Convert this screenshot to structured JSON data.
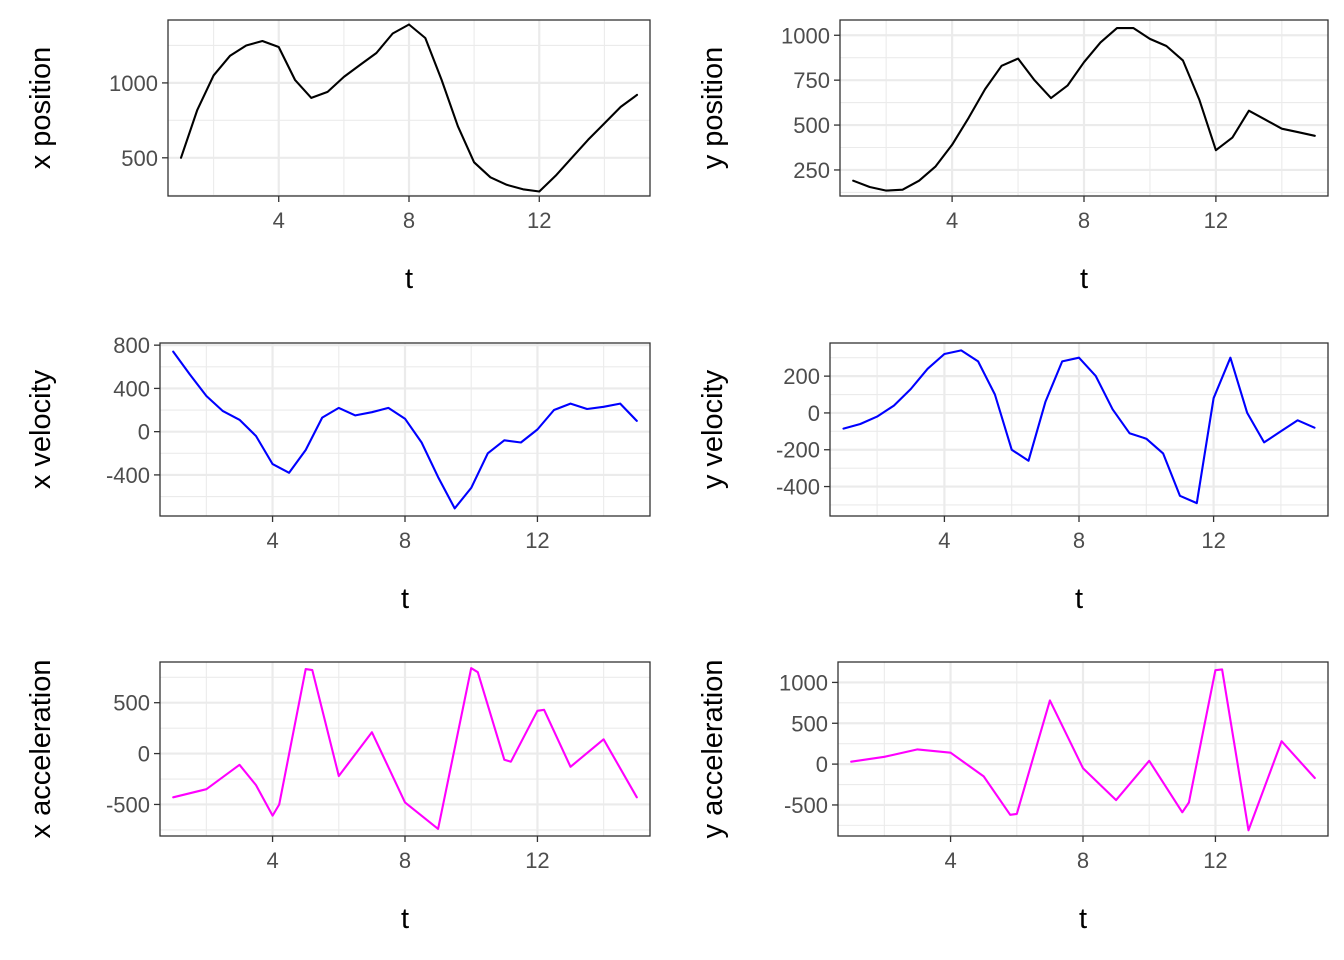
{
  "chart_data": [
    {
      "type": "line",
      "xlabel": "t",
      "ylabel": "x position",
      "color": "#000000",
      "xlim": [
        0.6,
        15.4
      ],
      "ylim": [
        245,
        1420
      ],
      "xticks": [
        4,
        8,
        12
      ],
      "xtick_labels": [
        "4",
        "8",
        "12"
      ],
      "yticks": [
        500,
        1000
      ],
      "ytick_labels": [
        "500",
        "1000"
      ],
      "x": [
        1,
        1.5,
        2,
        2.5,
        3,
        3.5,
        4,
        4.5,
        5,
        5.5,
        6,
        6.5,
        7,
        7.5,
        8,
        8.5,
        9,
        9.5,
        10,
        10.5,
        11,
        11.5,
        12,
        12.5,
        13,
        13.5,
        14,
        14.5,
        15
      ],
      "y": [
        500,
        820,
        1050,
        1180,
        1250,
        1280,
        1240,
        1020,
        900,
        940,
        1040,
        1120,
        1200,
        1330,
        1390,
        1300,
        1020,
        710,
        470,
        370,
        320,
        290,
        275,
        380,
        500,
        620,
        730,
        840,
        920
      ]
    },
    {
      "type": "line",
      "xlabel": "t",
      "ylabel": "y position",
      "color": "#000000",
      "xlim": [
        0.6,
        15.4
      ],
      "ylim": [
        105,
        1085
      ],
      "xticks": [
        4,
        8,
        12
      ],
      "xtick_labels": [
        "4",
        "8",
        "12"
      ],
      "yticks": [
        250,
        500,
        750,
        1000
      ],
      "ytick_labels": [
        "250",
        "500",
        "750",
        "1000"
      ],
      "x": [
        1,
        1.5,
        2,
        2.5,
        3,
        3.5,
        4,
        4.5,
        5,
        5.5,
        6,
        6.5,
        7,
        7.5,
        8,
        8.5,
        9,
        9.5,
        10,
        10.5,
        11,
        11.5,
        12,
        12.5,
        13,
        13.5,
        14,
        14.5,
        15
      ],
      "y": [
        190,
        155,
        135,
        140,
        190,
        270,
        390,
        540,
        700,
        830,
        870,
        750,
        650,
        720,
        850,
        960,
        1040,
        1040,
        980,
        940,
        860,
        640,
        360,
        430,
        580,
        530,
        480,
        460,
        440
      ]
    },
    {
      "type": "line",
      "xlabel": "t",
      "ylabel": "x velocity",
      "color": "#0000ff",
      "xlim": [
        0.6,
        15.4
      ],
      "ylim": [
        -780,
        820
      ],
      "xticks": [
        4,
        8,
        12
      ],
      "xtick_labels": [
        "4",
        "8",
        "12"
      ],
      "yticks": [
        -400,
        0,
        400,
        800
      ],
      "ytick_labels": [
        "-400",
        "0",
        "400",
        "800"
      ],
      "x": [
        1,
        1.5,
        2,
        2.5,
        3,
        3.5,
        4,
        4.5,
        5,
        5.5,
        6,
        6.5,
        7,
        7.5,
        8,
        8.5,
        9,
        9.5,
        10,
        10.5,
        11,
        11.5,
        12,
        12.5,
        13,
        13.5,
        14,
        14.5,
        15
      ],
      "y": [
        740,
        530,
        330,
        190,
        110,
        -40,
        -300,
        -380,
        -170,
        130,
        220,
        150,
        180,
        220,
        120,
        -100,
        -420,
        -710,
        -520,
        -200,
        -80,
        -100,
        20,
        200,
        260,
        210,
        230,
        260,
        100
      ]
    },
    {
      "type": "line",
      "xlabel": "t",
      "ylabel": "y velocity",
      "color": "#0000ff",
      "xlim": [
        0.6,
        15.4
      ],
      "ylim": [
        -560,
        380
      ],
      "xticks": [
        4,
        8,
        12
      ],
      "xtick_labels": [
        "4",
        "8",
        "12"
      ],
      "yticks": [
        -400,
        -200,
        0,
        200
      ],
      "ytick_labels": [
        "-400",
        "-200",
        "0",
        "200"
      ],
      "x": [
        1,
        1.5,
        2,
        2.5,
        3,
        3.5,
        4,
        4.5,
        5,
        5.5,
        6,
        6.5,
        7,
        7.5,
        8,
        8.5,
        9,
        9.5,
        10,
        10.5,
        11,
        11.5,
        12,
        12.5,
        13,
        13.5,
        14,
        14.5,
        15
      ],
      "y": [
        -85,
        -60,
        -20,
        40,
        130,
        240,
        320,
        340,
        280,
        100,
        -200,
        -260,
        60,
        280,
        300,
        200,
        20,
        -110,
        -140,
        -220,
        -450,
        -490,
        80,
        300,
        0,
        -160,
        -100,
        -40,
        -80
      ]
    },
    {
      "type": "line",
      "xlabel": "t",
      "ylabel": "x acceleration",
      "color": "#ff00ff",
      "xlim": [
        0.6,
        15.4
      ],
      "ylim": [
        -810,
        900
      ],
      "xticks": [
        4,
        8,
        12
      ],
      "xtick_labels": [
        "4",
        "8",
        "12"
      ],
      "yticks": [
        -500,
        0,
        500
      ],
      "ytick_labels": [
        "-500",
        "0",
        "500"
      ],
      "x": [
        1,
        2,
        3,
        3.5,
        4,
        4.2,
        5,
        5.2,
        6,
        7,
        8,
        9,
        10,
        10.2,
        11,
        11.2,
        12,
        12.2,
        13,
        14,
        15
      ],
      "y": [
        -430,
        -350,
        -110,
        -310,
        -610,
        -500,
        830,
        820,
        -220,
        210,
        -480,
        -740,
        840,
        800,
        -60,
        -80,
        420,
        430,
        -130,
        140,
        -430
      ]
    },
    {
      "type": "line",
      "xlabel": "t",
      "ylabel": "y acceleration",
      "color": "#ff00ff",
      "xlim": [
        0.6,
        15.4
      ],
      "ylim": [
        -880,
        1250
      ],
      "xticks": [
        4,
        8,
        12
      ],
      "xtick_labels": [
        "4",
        "8",
        "12"
      ],
      "yticks": [
        -500,
        0,
        500,
        1000
      ],
      "ytick_labels": [
        "-500",
        "0",
        "500",
        "1000"
      ],
      "x": [
        1,
        2,
        3,
        4,
        5,
        5.8,
        6,
        7,
        8,
        9,
        10,
        11,
        11.2,
        12,
        12.2,
        13,
        14,
        15
      ],
      "y": [
        30,
        90,
        180,
        140,
        -150,
        -620,
        -610,
        780,
        -50,
        -440,
        40,
        -590,
        -470,
        1150,
        1160,
        -810,
        280,
        -170
      ]
    }
  ]
}
